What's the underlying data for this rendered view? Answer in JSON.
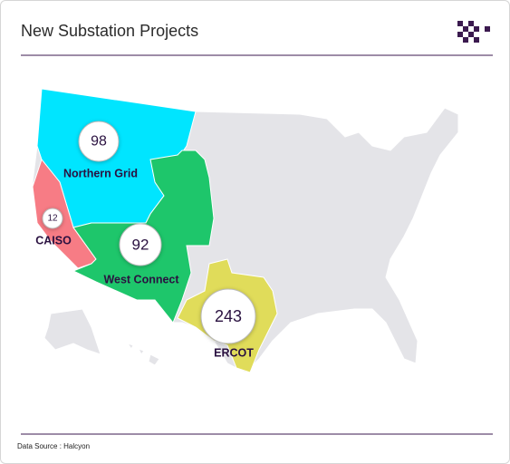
{
  "header": {
    "title": "New Substation Projects"
  },
  "regions": [
    {
      "name": "Northern Grid",
      "projects": 98,
      "color": "#00e5ff"
    },
    {
      "name": "CAISO",
      "projects": 12,
      "color": "#f77c85"
    },
    {
      "name": "West Connect",
      "projects": 92,
      "color": "#1ec66b"
    },
    {
      "name": "ERCOT",
      "projects": 243,
      "color": "#e0dc5a"
    }
  ],
  "footer": {
    "source": "Data Source : Halcyon"
  }
}
